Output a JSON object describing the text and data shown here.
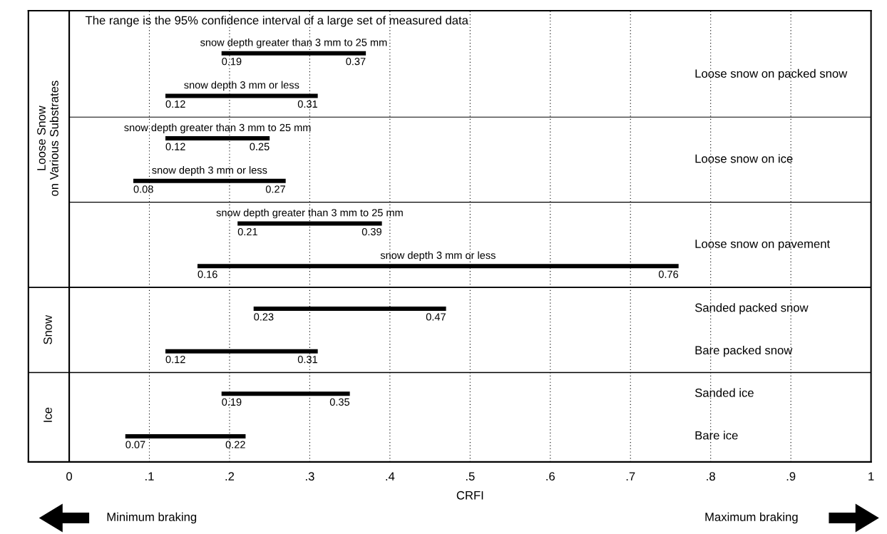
{
  "chart_data": {
    "type": "bar",
    "orientation": "horizontal",
    "xlabel": "CRFI",
    "categories": [
      "snow depth greater than 3 mm to 25 mm",
      "snow depth 3 mm or less",
      "snow depth greater than 3 mm to 25 mm",
      "snow depth 3 mm or less",
      "snow depth greater than 3 mm to 25 mm",
      "snow depth 3 mm or less",
      "Sanded packed snow",
      "Bare packed snow",
      "Sanded ice",
      "Bare ice"
    ],
    "base": [
      0.19,
      0.12,
      0.12,
      0.08,
      0.21,
      0.16,
      0.23,
      0.12,
      0.19,
      0.07
    ],
    "values": [
      0.18,
      0.19,
      0.13,
      0.19,
      0.18,
      0.6,
      0.24,
      0.19,
      0.16,
      0.15
    ],
    "value_labels": [
      "0.37",
      "0.31",
      "0.25",
      "0.27",
      "0.39",
      "0.76",
      "0.47",
      "0.31",
      "0.35",
      "0.22"
    ],
    "color": "#000000",
    "xlim": [
      0,
      1
    ],
    "xticks": [
      0,
      {
        "value": 0.1,
        "label": ".1"
      },
      {
        "value": 0.2,
        "label": ".2"
      },
      {
        "value": 0.3,
        "label": ".3"
      },
      {
        "value": 0.4,
        "label": ".4"
      },
      {
        "value": 0.5,
        "label": ".5"
      },
      {
        "value": 0.6,
        "label": ".6"
      },
      {
        "value": 0.7,
        "label": ".7"
      },
      {
        "value": 0.8,
        "label": ".8"
      },
      {
        "value": 0.9,
        "label": ".9"
      },
      1
    ],
    "grid": "x",
    "tick_labels": "x",
    "annotations": [
      "The range is the 95% confidence interval of a large set of measured data",
      "Loose snow on packed snow",
      "Loose snow on ice",
      "Loose snow on pavement",
      "Loose Snow\non Various Substrates",
      "Snow",
      "Ice",
      "Minimum braking",
      "Maximum braking",
      "0.19",
      "0.12",
      "0.12",
      "0.08",
      "0.21",
      "0.16",
      "0.23",
      "0.12",
      "0.19",
      "0.07"
    ]
  }
}
